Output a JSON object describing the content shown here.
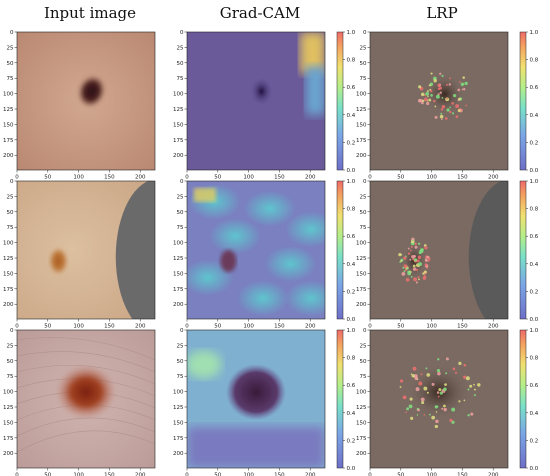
{
  "columns": [
    "Input image",
    "Grad-CAM",
    "LRP"
  ],
  "axes": {
    "x_ticks": [
      0,
      50,
      100,
      150,
      200
    ],
    "y_ticks": [
      0,
      25,
      50,
      75,
      100,
      125,
      150,
      175,
      200
    ],
    "range": [
      0,
      224
    ]
  },
  "colorbar": {
    "ticks": [
      0.0,
      0.2,
      0.4,
      0.6,
      0.8,
      1.0
    ],
    "tick_labels": [
      "0.0",
      "0.2",
      "0.4",
      "0.6",
      "0.8",
      "1.0"
    ]
  },
  "colors": {
    "skin_row1": "#c89a80",
    "skin_row2": "#cfb08e",
    "skin_row3": "#c8a8a4",
    "lesion_dark": "#3a1a18",
    "lesion_orange": "#b86a28",
    "overlay_purple": "#6a5a9a",
    "lrp_base": "#7a6a62"
  }
}
